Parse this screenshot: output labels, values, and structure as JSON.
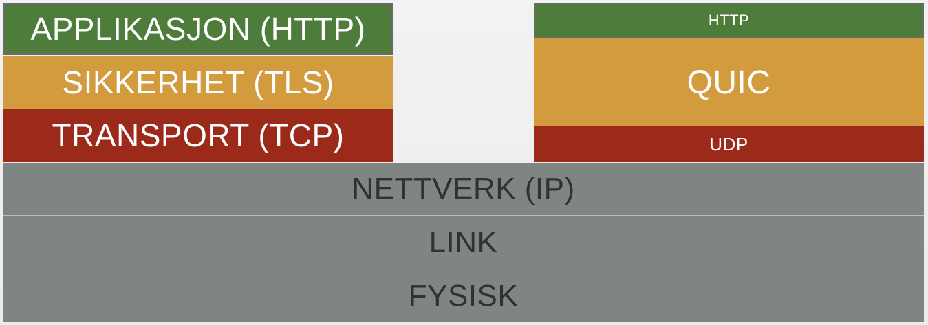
{
  "left_stack": {
    "application": "APPLIKASJON (HTTP)",
    "security": "SIKKERHET (TLS)",
    "transport": "TRANSPORT (TCP)"
  },
  "right_stack": {
    "http": "HTTP",
    "quic": "QUIC",
    "udp": "UDP"
  },
  "shared_layers": {
    "network": "NETTVERK (IP)",
    "link": "LINK",
    "physical": "FYSISK"
  },
  "colors": {
    "application": "#4e7c3b",
    "security": "#d29b3e",
    "transport": "#9b2a1a",
    "lower": "#7f8583"
  }
}
